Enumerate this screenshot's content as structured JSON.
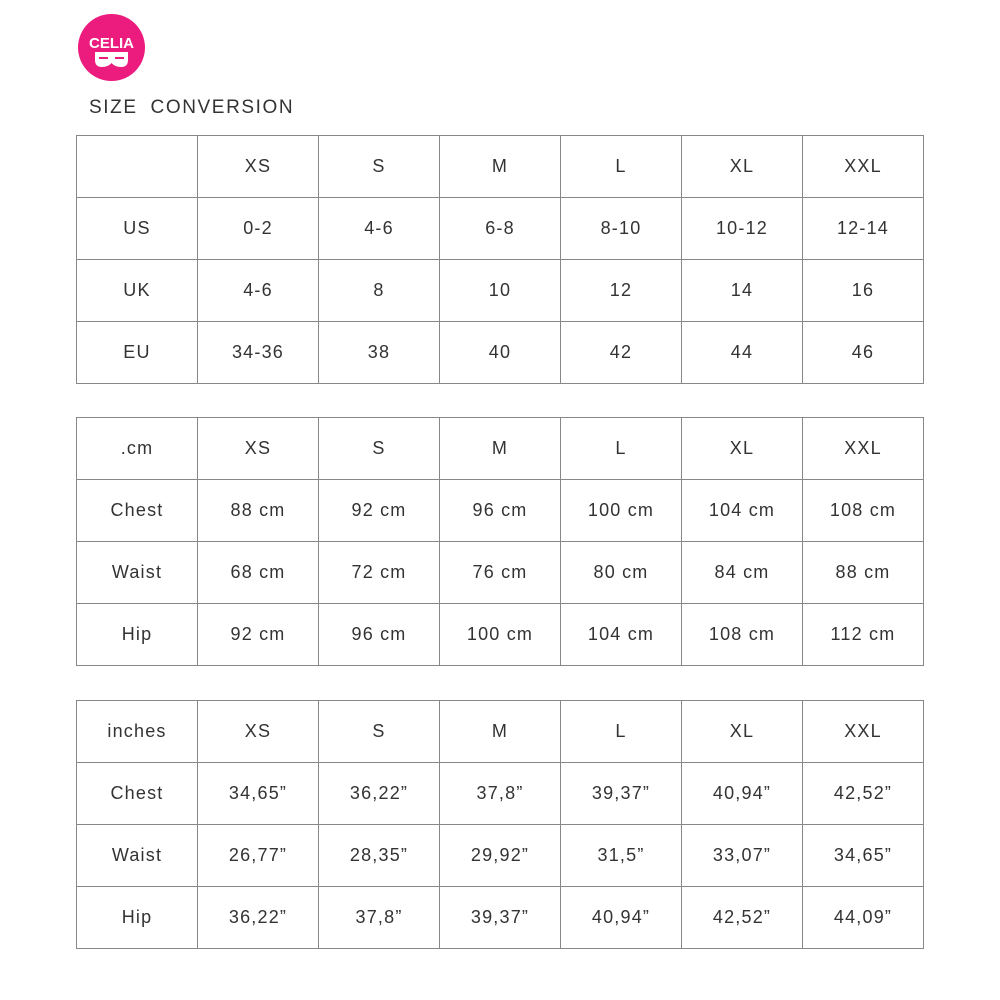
{
  "logo": {
    "text": "CELIA",
    "color": "#ec1c7e"
  },
  "title": "SIZE  CONVERSION",
  "tables": [
    {
      "header": [
        "",
        "XS",
        "S",
        "M",
        "L",
        "XL",
        "XXL"
      ],
      "rows": [
        [
          "US",
          "0-2",
          "4-6",
          "6-8",
          "8-10",
          "10-12",
          "12-14"
        ],
        [
          "UK",
          "4-6",
          "8",
          "10",
          "12",
          "14",
          "16"
        ],
        [
          "EU",
          "34-36",
          "38",
          "40",
          "42",
          "44",
          "46"
        ]
      ]
    },
    {
      "header": [
        ".cm",
        "XS",
        "S",
        "M",
        "L",
        "XL",
        "XXL"
      ],
      "rows": [
        [
          "Chest",
          "88 cm",
          "92 cm",
          "96 cm",
          "100 cm",
          "104 cm",
          "108 cm"
        ],
        [
          "Waist",
          "68 cm",
          "72 cm",
          "76 cm",
          "80 cm",
          "84 cm",
          "88 cm"
        ],
        [
          "Hip",
          "92 cm",
          "96 cm",
          "100 cm",
          "104 cm",
          "108 cm",
          "112 cm"
        ]
      ]
    },
    {
      "header": [
        "inches",
        "XS",
        "S",
        "M",
        "L",
        "XL",
        "XXL"
      ],
      "rows": [
        [
          "Chest",
          "34,65”",
          "36,22”",
          "37,8”",
          "39,37”",
          "40,94”",
          "42,52”"
        ],
        [
          "Waist",
          "26,77”",
          "28,35”",
          "29,92”",
          "31,5”",
          "33,07”",
          "34,65”"
        ],
        [
          "Hip",
          "36,22”",
          "37,8”",
          "39,37”",
          "40,94”",
          "42,52”",
          "44,09”"
        ]
      ]
    }
  ]
}
